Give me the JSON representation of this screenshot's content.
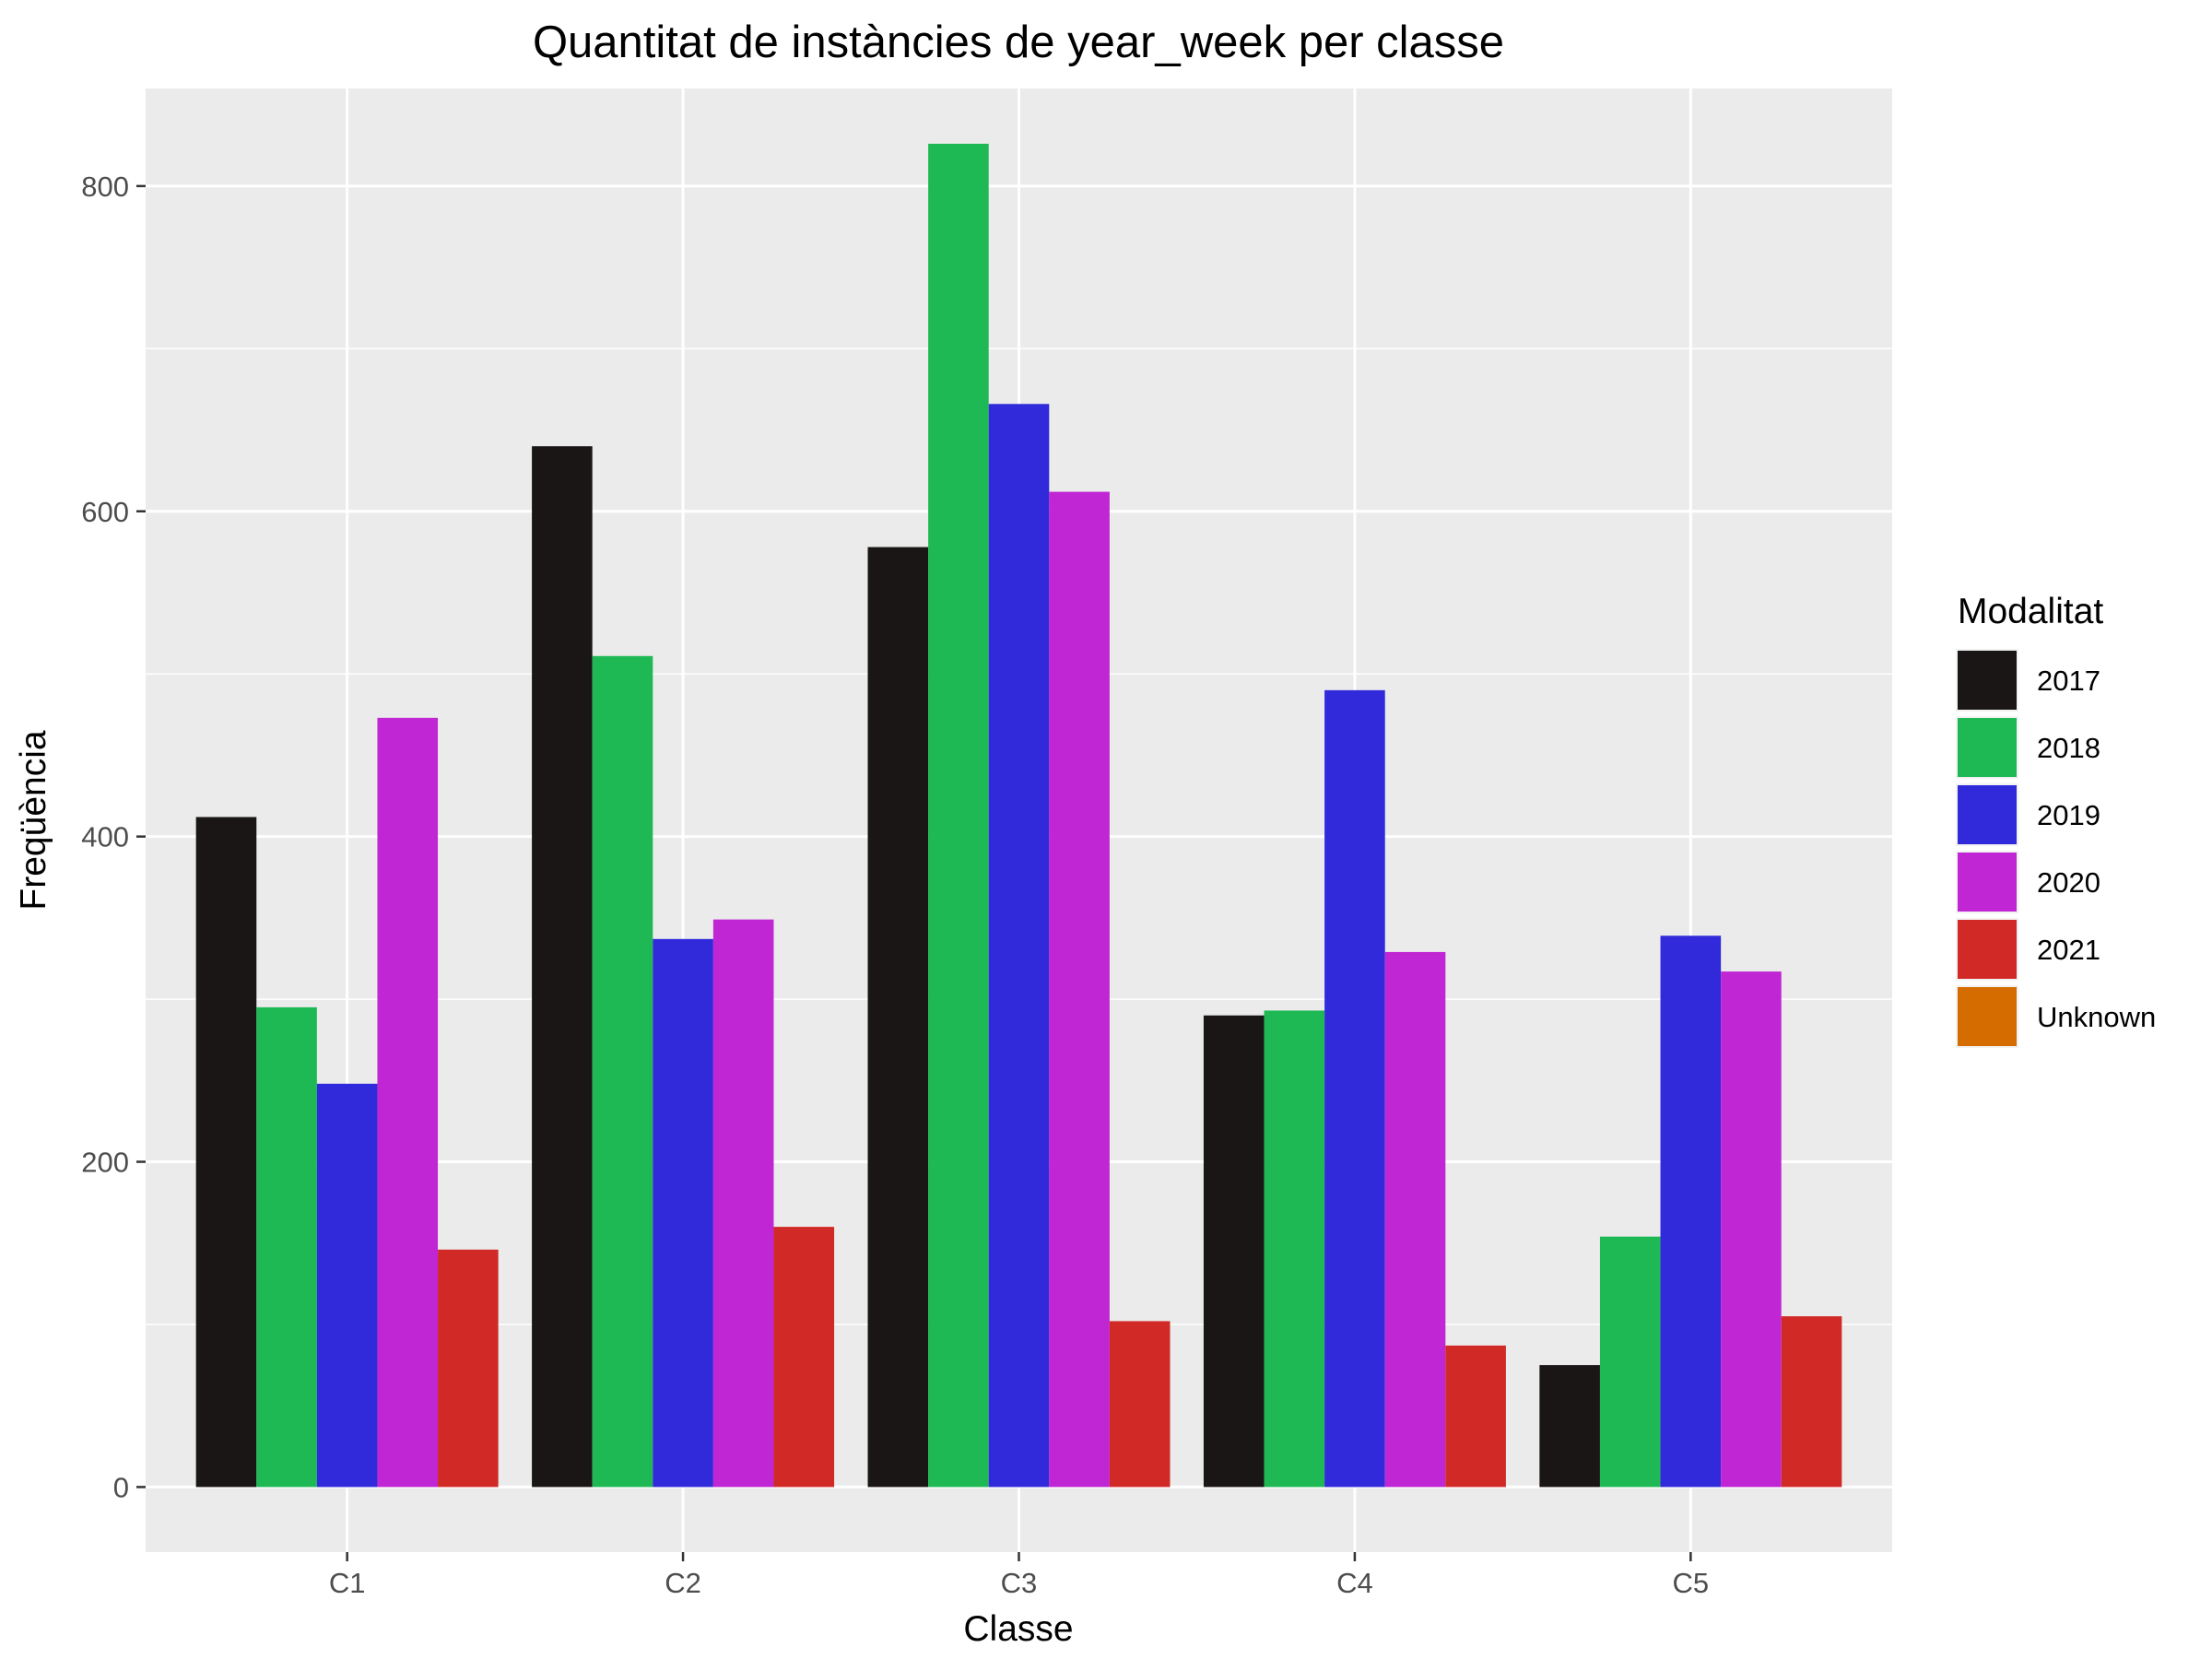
{
  "chart_data": {
    "type": "bar",
    "title": "Quantitat de instàncies de year_week per classe",
    "xlabel": "Classe",
    "ylabel": "Freqüència",
    "categories": [
      "C1",
      "C2",
      "C3",
      "C4",
      "C5"
    ],
    "ylim": [
      -40,
      860
    ],
    "yticks": [
      0,
      200,
      400,
      600,
      800
    ],
    "grid": true,
    "legend": {
      "title": "Modalitat",
      "position": "right",
      "entries": [
        "2017",
        "2018",
        "2019",
        "2020",
        "2021",
        "Unknown"
      ]
    },
    "series": [
      {
        "name": "2017",
        "color": "#1a1616",
        "values": [
          412,
          640,
          578,
          290,
          75
        ]
      },
      {
        "name": "2018",
        "color": "#1eb955",
        "values": [
          295,
          511,
          826,
          293,
          154
        ]
      },
      {
        "name": "2019",
        "color": "#302adb",
        "values": [
          248,
          337,
          666,
          490,
          339
        ]
      },
      {
        "name": "2020",
        "color": "#c026d3",
        "values": [
          473,
          349,
          612,
          329,
          317
        ]
      },
      {
        "name": "2021",
        "color": "#d12a26",
        "values": [
          146,
          160,
          102,
          87,
          105
        ]
      },
      {
        "name": "Unknown",
        "color": "#d46c00",
        "values": [
          0,
          0,
          0,
          0,
          0
        ]
      }
    ]
  }
}
